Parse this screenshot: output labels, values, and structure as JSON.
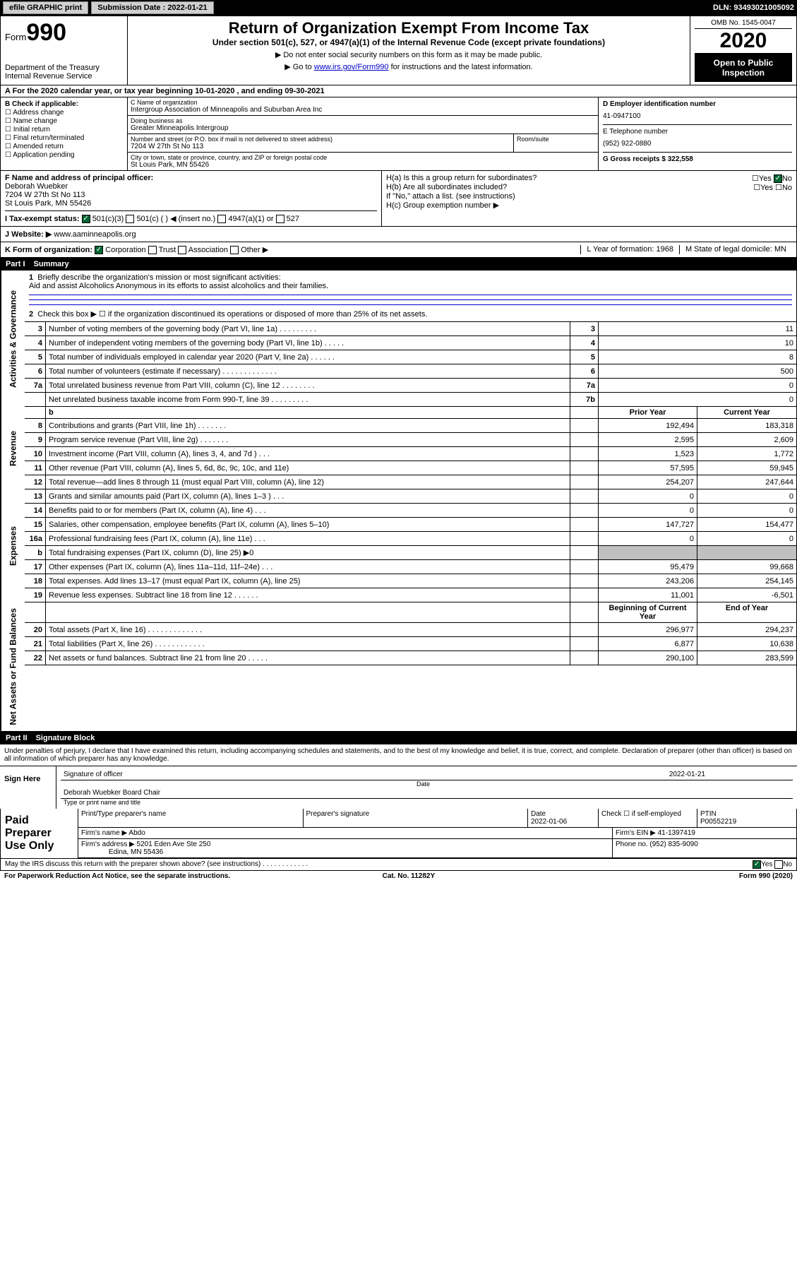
{
  "header": {
    "efile": "efile GRAPHIC print",
    "submission_label": "Submission Date : 2022-01-21",
    "dln": "DLN: 93493021005092"
  },
  "form_top": {
    "form_label": "Form",
    "form_num": "990",
    "dept": "Department of the Treasury\nInternal Revenue Service",
    "title": "Return of Organization Exempt From Income Tax",
    "subtitle": "Under section 501(c), 527, or 4947(a)(1) of the Internal Revenue Code (except private foundations)",
    "note1": "▶ Do not enter social security numbers on this form as it may be made public.",
    "note2_pre": "▶ Go to ",
    "note2_link": "www.irs.gov/Form990",
    "note2_post": " for instructions and the latest information.",
    "omb": "OMB No. 1545-0047",
    "year": "2020",
    "inspect": "Open to Public Inspection"
  },
  "row_a": "A For the 2020 calendar year, or tax year beginning 10-01-2020   , and ending 09-30-2021",
  "section_b": {
    "label": "B Check if applicable:",
    "checks": [
      "Address change",
      "Name change",
      "Initial return",
      "Final return/terminated",
      "Amended return",
      "Application pending"
    ],
    "c_label": "C Name of organization",
    "c_name": "Intergroup Association of Minneapolis and Suburban Area Inc",
    "dba_label": "Doing business as",
    "dba": "Greater Minneapolis Intergroup",
    "addr_label": "Number and street (or P.O. box if mail is not delivered to street address)",
    "addr": "7204 W 27th St No 113",
    "room_label": "Room/suite",
    "city_label": "City or town, state or province, country, and ZIP or foreign postal code",
    "city": "St Louis Park, MN  55426",
    "d_label": "D Employer identification number",
    "d_val": "41-0947100",
    "e_label": "E Telephone number",
    "e_val": "(952) 922-0880",
    "g_label": "G Gross receipts $ 322,558"
  },
  "section_f": {
    "f_label": "F Name and address of principal officer:",
    "f_name": "Deborah Wuebker",
    "f_addr1": "7204 W 27th St No 113",
    "f_addr2": "St Louis Park, MN  55426",
    "ha": "H(a)  Is this a group return for subordinates?",
    "hb": "H(b)  Are all subordinates included?",
    "hb_note": "If \"No,\" attach a list. (see instructions)",
    "hc": "H(c)  Group exemption number ▶",
    "yes": "Yes",
    "no": "No"
  },
  "tax_exempt": {
    "label": "I  Tax-exempt status:",
    "opt1": "501(c)(3)",
    "opt2": "501(c) (  ) ◀ (insert no.)",
    "opt3": "4947(a)(1) or",
    "opt4": "527"
  },
  "row_j": {
    "label": "J  Website: ▶",
    "val": "www.aaminneapolis.org"
  },
  "row_k": {
    "label": "K Form of organization:",
    "corp": "Corporation",
    "trust": "Trust",
    "assoc": "Association",
    "other": "Other ▶",
    "l": "L Year of formation: 1968",
    "m": "M State of legal domicile: MN"
  },
  "part1": {
    "title": "Part I",
    "name": "Summary",
    "side_gov": "Activities & Governance",
    "side_rev": "Revenue",
    "side_exp": "Expenses",
    "side_net": "Net Assets or Fund Balances",
    "line1_label": "Briefly describe the organization's mission or most significant activities:",
    "line1_text": "Aid and assist Alcoholics Anonymous in its efforts to assist alcoholics and their families.",
    "line2": "Check this box ▶ ☐  if the organization discontinued its operations or disposed of more than 25% of its net assets.",
    "prior_year": "Prior Year",
    "current_year": "Current Year",
    "begin_year": "Beginning of Current Year",
    "end_year": "End of Year",
    "rows_gov": [
      {
        "n": "3",
        "label": "Number of voting members of the governing body (Part VI, line 1a)  .  .  .  .  .  .  .  .  .",
        "rn": "3",
        "val": "11"
      },
      {
        "n": "4",
        "label": "Number of independent voting members of the governing body (Part VI, line 1b)  .  .  .  .  .",
        "rn": "4",
        "val": "10"
      },
      {
        "n": "5",
        "label": "Total number of individuals employed in calendar year 2020 (Part V, line 2a)  .  .  .  .  .  .",
        "rn": "5",
        "val": "8"
      },
      {
        "n": "6",
        "label": "Total number of volunteers (estimate if necessary)  .  .  .  .  .  .  .  .  .  .  .  .  .",
        "rn": "6",
        "val": "500"
      },
      {
        "n": "7a",
        "label": "Total unrelated business revenue from Part VIII, column (C), line 12  .  .  .  .  .  .  .  .",
        "rn": "7a",
        "val": "0"
      },
      {
        "n": "",
        "label": "Net unrelated business taxable income from Form 990-T, line 39  .  .  .  .  .  .  .  .  .",
        "rn": "7b",
        "val": "0"
      }
    ],
    "rows_rev": [
      {
        "n": "8",
        "label": "Contributions and grants (Part VIII, line 1h)  .  .  .  .  .  .  .",
        "prior": "192,494",
        "curr": "183,318"
      },
      {
        "n": "9",
        "label": "Program service revenue (Part VIII, line 2g)  .  .  .  .  .  .  .",
        "prior": "2,595",
        "curr": "2,609"
      },
      {
        "n": "10",
        "label": "Investment income (Part VIII, column (A), lines 3, 4, and 7d )  .  .  .",
        "prior": "1,523",
        "curr": "1,772"
      },
      {
        "n": "11",
        "label": "Other revenue (Part VIII, column (A), lines 5, 6d, 8c, 9c, 10c, and 11e)",
        "prior": "57,595",
        "curr": "59,945"
      },
      {
        "n": "12",
        "label": "Total revenue—add lines 8 through 11 (must equal Part VIII, column (A), line 12)",
        "prior": "254,207",
        "curr": "247,644"
      }
    ],
    "rows_exp": [
      {
        "n": "13",
        "label": "Grants and similar amounts paid (Part IX, column (A), lines 1–3 )  .  .  .",
        "prior": "0",
        "curr": "0"
      },
      {
        "n": "14",
        "label": "Benefits paid to or for members (Part IX, column (A), line 4)  .  .  .",
        "prior": "0",
        "curr": "0"
      },
      {
        "n": "15",
        "label": "Salaries, other compensation, employee benefits (Part IX, column (A), lines 5–10)",
        "prior": "147,727",
        "curr": "154,477"
      },
      {
        "n": "16a",
        "label": "Professional fundraising fees (Part IX, column (A), line 11e)  .  .  .",
        "prior": "0",
        "curr": "0"
      },
      {
        "n": "b",
        "label": "Total fundraising expenses (Part IX, column (D), line 25) ▶0",
        "prior": "",
        "curr": "",
        "shaded": true
      },
      {
        "n": "17",
        "label": "Other expenses (Part IX, column (A), lines 11a–11d, 11f–24e)  .  .  .",
        "prior": "95,479",
        "curr": "99,668"
      },
      {
        "n": "18",
        "label": "Total expenses. Add lines 13–17 (must equal Part IX, column (A), line 25)",
        "prior": "243,206",
        "curr": "254,145"
      },
      {
        "n": "19",
        "label": "Revenue less expenses. Subtract line 18 from line 12  .  .  .  .  .  .",
        "prior": "11,001",
        "curr": "-6,501"
      }
    ],
    "rows_net": [
      {
        "n": "20",
        "label": "Total assets (Part X, line 16)  .  .  .  .  .  .  .  .  .  .  .  .  .",
        "prior": "296,977",
        "curr": "294,237"
      },
      {
        "n": "21",
        "label": "Total liabilities (Part X, line 26)  .  .  .  .  .  .  .  .  .  .  .  .",
        "prior": "6,877",
        "curr": "10,638"
      },
      {
        "n": "22",
        "label": "Net assets or fund balances. Subtract line 21 from line 20  .  .  .  .  .",
        "prior": "290,100",
        "curr": "283,599"
      }
    ]
  },
  "part2": {
    "title": "Part II",
    "name": "Signature Block",
    "text": "Under penalties of perjury, I declare that I have examined this return, including accompanying schedules and statements, and to the best of my knowledge and belief, it is true, correct, and complete. Declaration of preparer (other than officer) is based on all information of which preparer has any knowledge.",
    "sign_here": "Sign Here",
    "sig_officer": "Signature of officer",
    "sig_date": "2022-01-21",
    "sig_date_label": "Date",
    "sig_name": "Deborah Wuebker  Board Chair",
    "sig_name_label": "Type or print name and title",
    "paid_prep": "Paid Preparer Use Only",
    "prep_name_label": "Print/Type preparer's name",
    "prep_sig_label": "Preparer's signature",
    "prep_date_label": "Date",
    "prep_date": "2022-01-06",
    "prep_check_label": "Check ☐ if self-employed",
    "ptin_label": "PTIN",
    "ptin": "P00552219",
    "firm_name_label": "Firm's name    ▶",
    "firm_name": "Abdo",
    "firm_ein_label": "Firm's EIN ▶",
    "firm_ein": "41-1397419",
    "firm_addr_label": "Firm's address ▶",
    "firm_addr1": "5201 Eden Ave Ste 250",
    "firm_addr2": "Edina, MN  55436",
    "phone_label": "Phone no.",
    "phone": "(952) 835-9090",
    "discuss": "May the IRS discuss this return with the preparer shown above? (see instructions)  .  .  .  .  .  .  .  .  .  .  .  .",
    "yes": "Yes",
    "no": "No"
  },
  "footer": {
    "paperwork": "For Paperwork Reduction Act Notice, see the separate instructions.",
    "cat": "Cat. No. 11282Y",
    "form": "Form 990 (2020)"
  }
}
